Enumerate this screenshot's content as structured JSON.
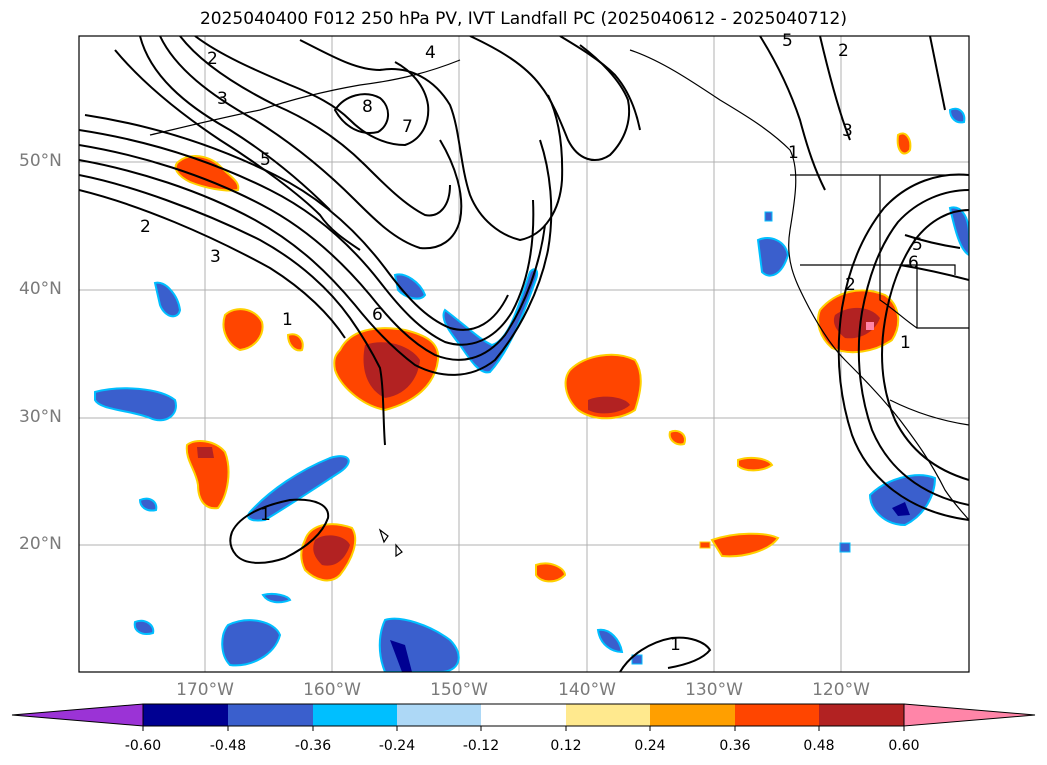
{
  "title": "2025040400 F012 250 hPa PV, IVT Landfall PC (2025040612 - 2025040712)",
  "latitude_labels": [
    "50°N",
    "40°N",
    "30°N",
    "20°N"
  ],
  "longitude_labels": [
    "170°W",
    "160°W",
    "150°W",
    "140°W",
    "130°W",
    "120°W"
  ],
  "contour_labels": [
    "2",
    "3",
    "8",
    "7",
    "5",
    "2",
    "3",
    "1",
    "6",
    "1",
    "1",
    "1",
    "3",
    "5",
    "6",
    "1",
    "2",
    "4",
    "5",
    "2"
  ],
  "colorbar": {
    "tick_labels": [
      "-0.60",
      "-0.48",
      "-0.36",
      "-0.24",
      "-0.12",
      "0.12",
      "0.24",
      "0.36",
      "0.48",
      "0.60"
    ],
    "colors": [
      "#9b33d6",
      "#000092",
      "#3a5fcd",
      "#00bfff",
      "#add8f6",
      "#ffffff",
      "#ffe98e",
      "#ff9f00",
      "#ff4500",
      "#b22222",
      "#ff85a8"
    ]
  },
  "colors": {
    "contour": "#000000",
    "grid": "#b0b0b0",
    "coastline": "#000000",
    "positive_fill": "#ff4500",
    "negative_fill": "#3a5fcd"
  }
}
